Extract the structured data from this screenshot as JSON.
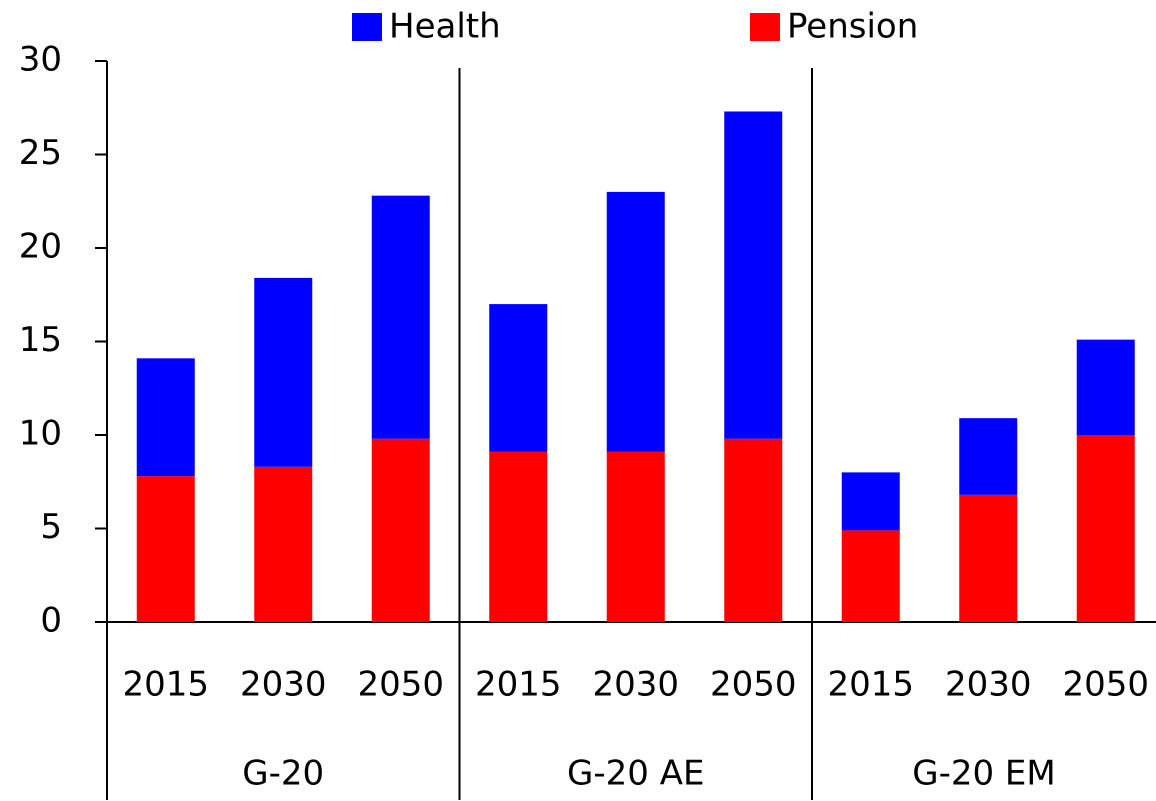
{
  "chart_data": {
    "type": "stacked-bar",
    "groups": [
      {
        "name": "G-20",
        "categories": [
          "2015",
          "2030",
          "2050"
        ]
      },
      {
        "name": "G-20 AE",
        "categories": [
          "2015",
          "2030",
          "2050"
        ]
      },
      {
        "name": "G-20 EM",
        "categories": [
          "2015",
          "2030",
          "2050"
        ]
      }
    ],
    "series": [
      {
        "name": "Health",
        "color": "#0000ff",
        "values": [
          6.3,
          10.1,
          13.0,
          7.9,
          13.9,
          17.5,
          3.1,
          4.1,
          5.1
        ]
      },
      {
        "name": "Pension",
        "color": "#ff0000",
        "values": [
          7.8,
          8.3,
          9.8,
          9.1,
          9.1,
          9.8,
          4.9,
          6.8,
          10.0
        ]
      }
    ],
    "ylim": [
      0,
      30
    ],
    "yticks": [
      0,
      5,
      10,
      15,
      20,
      25,
      30
    ],
    "legend": "top"
  }
}
